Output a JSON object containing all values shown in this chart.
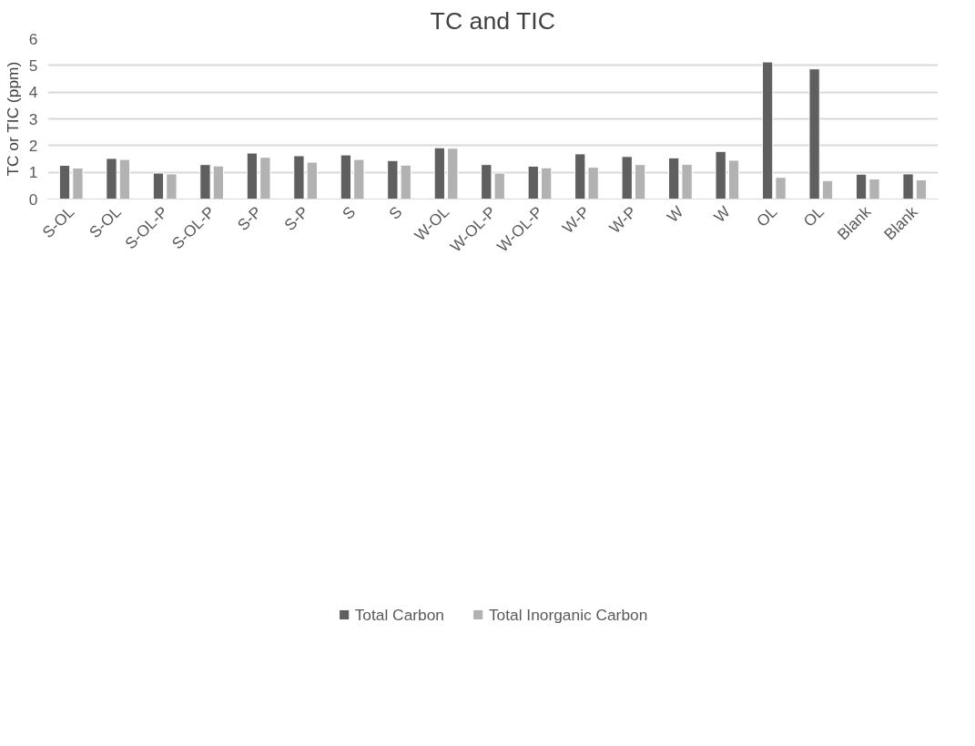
{
  "chart_data": {
    "type": "bar",
    "title": "TC and TIC",
    "ylabel": "TC or TIC (ppm)",
    "categories": [
      "S-OL",
      "S-OL",
      "S-OL-P",
      "S-OL-P",
      "S-P",
      "S-P",
      "S",
      "S",
      "W-OL",
      "W-OL-P",
      "W-OL-P",
      "W-P",
      "W-P",
      "W",
      "W",
      "OL",
      "OL",
      "Blank",
      "Blank"
    ],
    "series": [
      {
        "name": "Total Carbon",
        "color": "#5f5f5f",
        "values": [
          1.26,
          1.52,
          0.97,
          1.29,
          1.72,
          1.62,
          1.65,
          1.44,
          1.92,
          1.29,
          1.23,
          1.69,
          1.59,
          1.54,
          1.78,
          5.13,
          4.87,
          0.93,
          0.94
        ]
      },
      {
        "name": "Total Inorganic Carbon",
        "color": "#b2b2b2",
        "values": [
          1.16,
          1.48,
          0.94,
          1.24,
          1.56,
          1.38,
          1.48,
          1.27,
          1.9,
          0.97,
          1.17,
          1.19,
          1.29,
          1.3,
          1.45,
          0.81,
          0.69,
          0.75,
          0.72
        ]
      }
    ],
    "ylim": [
      0,
      6
    ],
    "yticks": [
      0,
      1,
      2,
      3,
      4,
      5,
      6
    ],
    "grid": "y",
    "legend": "bottom"
  }
}
